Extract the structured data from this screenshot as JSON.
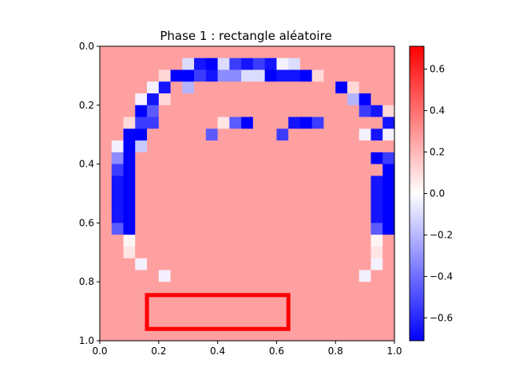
{
  "chart_data": {
    "type": "heatmap",
    "title": "Phase 1 : rectangle aléatoire",
    "xlabel": "",
    "ylabel": "",
    "xlim": [
      0.0,
      1.0
    ],
    "ylim": [
      1.0,
      0.0
    ],
    "x_ticks": [
      "0.0",
      "0.2",
      "0.4",
      "0.6",
      "0.8",
      "1.0"
    ],
    "y_ticks": [
      "0.0",
      "0.2",
      "0.4",
      "0.6",
      "0.8",
      "1.0"
    ],
    "colormap": "bwr",
    "vmin": -0.71,
    "vmax": 0.71,
    "colorbar_ticks": [
      "0.6",
      "0.4",
      "0.2",
      "0.0",
      "−0.2",
      "−0.4",
      "−0.6"
    ],
    "colorbar_tick_values": [
      0.6,
      0.4,
      0.2,
      0.0,
      -0.2,
      -0.4,
      -0.6
    ],
    "grid_shape": [
      25,
      25
    ],
    "grid": [
      "aaaaaaaaaaaaaaaaaaaaaaaaa",
      "aaaaaaalcbldcdcmlaaaaaaaa",
      "aaaaanbbdcjjllbccbnaaaaaa",
      "aaaamcakaaaaaaaaaaaabnaaa",
      "aaamcnaaaaaaaaaaaaaaakbaa",
      "aaabeaaaaaaaaaaaaaaaaadcn",
      "aanddaaaaaoebaaacbdaaaaac",
      "aabbaaaaaeaaaaadaaaaaamcm",
      "ambqaaaaaaaaaaaaaaaaaaaaa",
      "ajbaaaaaaaaaaaaaaaaaaaabd",
      "adbaaaaaaaaaaaaaaaaaaaaab",
      "acbaaaaaaaaaaaaaaaaaaaacb",
      "acbaaaaaaaaaaaaaaaaaaaacb",
      "acbaaaaaaaaaaaaaaaaaaaacb",
      "acbaaaaaaaaaaaaaaaaaaaacb",
      "aebaaaaaaaaaaaaaaaaaaaaeb",
      "aapaaaaaaaaaaaaaaaaaaaapa",
      "aaoaaaaaaaaaaaaaaaaaaaaoa",
      "aaamaaaaaaaaaaaaaaaaaaama",
      "aaaaamaaaaaaaaaaaaaaaamaa",
      "aaaaaaaaaaaaaaaaaaaaaaaaa",
      "aaaaaaaaaaaaaaaaaaaaaaaaa",
      "aaaaaaaaaaaaaaaaaaaaaaaaa",
      "aaaaaaaaaaaaaaaaaaaaaaaaa",
      "aaaaaaaaaaaaaaaaaaaaaaaaa"
    ],
    "palette": {
      "a": "#ffa0a0",
      "b": "#0000ff",
      "c": "#1414ff",
      "d": "#3c3cff",
      "e": "#5a5aff",
      "j": "#8c8cff",
      "k": "#b4b4ff",
      "l": "#dcdcff",
      "m": "#f5f0ff",
      "n": "#ffd8d8",
      "o": "#ffe4e4",
      "p": "#fff4f4",
      "q": "#c8c8ff"
    },
    "annotation": {
      "type": "rectangle",
      "color": "#ff0000",
      "x": [
        0.16,
        0.64
      ],
      "y": [
        0.845,
        0.96
      ]
    }
  }
}
